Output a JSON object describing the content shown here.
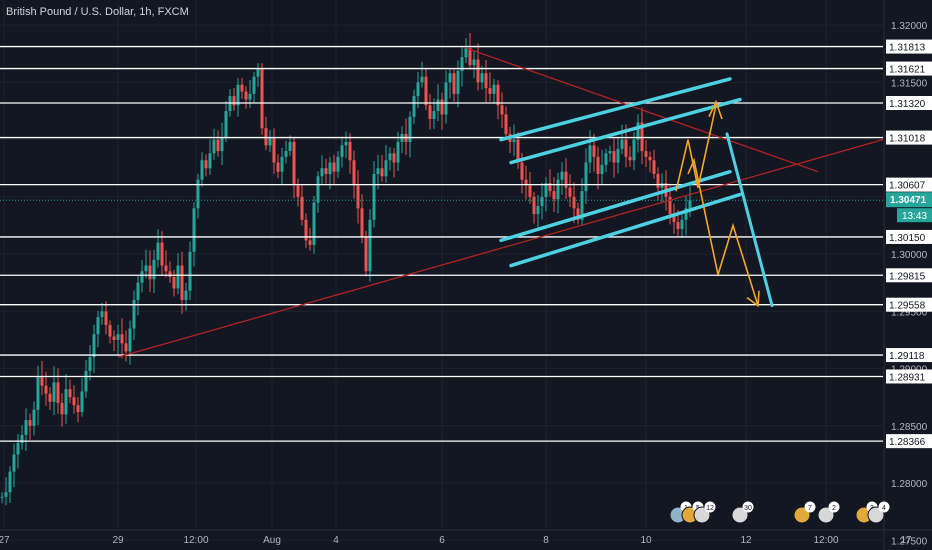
{
  "header": {
    "title": "British Pound / U.S. Dollar, 1h, FXCM"
  },
  "colors": {
    "background": "#131722",
    "up_candle": "#26a69a",
    "down_candle": "#ef5350",
    "grid_line": "#1e222d",
    "level_line": "#ffffff",
    "trend_line": "#b22222",
    "channel_line": "#4dd0e1",
    "projection": "#f5a623",
    "current_price_bg": "#26a69a"
  },
  "chart_data": {
    "type": "candlestick",
    "title": "British Pound / U.S. Dollar, 1h, FXCM",
    "x_tick_labels": [
      "27",
      "29",
      "12:00",
      "Aug",
      "4",
      "6",
      "8",
      "10",
      "12",
      "12:00",
      "17"
    ],
    "y_tick_labels": [
      "1.32000",
      "1.31500",
      "1.31000",
      "1.30500",
      "1.30000",
      "1.29500",
      "1.29000",
      "1.28500",
      "1.28000",
      "1.27500"
    ],
    "ylim": [
      1.2745,
      1.3215
    ],
    "price_levels": [
      1.31813,
      1.31621,
      1.3132,
      1.31018,
      1.30607,
      1.3015,
      1.29815,
      1.29558,
      1.29118,
      1.28931,
      1.28366
    ],
    "current_price": {
      "value": "1.30471",
      "countdown": "13:43"
    },
    "event_badges": [
      {
        "label": "1"
      },
      {
        "label": "5"
      },
      {
        "label": "12"
      },
      {
        "label": "30"
      },
      {
        "label": "7"
      },
      {
        "label": "2"
      },
      {
        "label": "3"
      },
      {
        "label": "4"
      }
    ],
    "candles_close_path": [
      [
        0,
        1.2788
      ],
      [
        4,
        1.2792
      ],
      [
        8,
        1.281
      ],
      [
        12,
        1.2825
      ],
      [
        16,
        1.2835
      ],
      [
        20,
        1.2842
      ],
      [
        24,
        1.2855
      ],
      [
        28,
        1.285
      ],
      [
        32,
        1.2864
      ],
      [
        36,
        1.2893
      ],
      [
        40,
        1.2885
      ],
      [
        44,
        1.2878
      ],
      [
        48,
        1.2871
      ],
      [
        52,
        1.2888
      ],
      [
        56,
        1.287
      ],
      [
        60,
        1.286
      ],
      [
        64,
        1.2882
      ],
      [
        68,
        1.2875
      ],
      [
        72,
        1.2868
      ],
      [
        76,
        1.2862
      ],
      [
        80,
        1.288
      ],
      [
        84,
        1.2898
      ],
      [
        88,
        1.291
      ],
      [
        92,
        1.293
      ],
      [
        96,
        1.2945
      ],
      [
        100,
        1.295
      ],
      [
        104,
        1.2938
      ],
      [
        108,
        1.2928
      ],
      [
        112,
        1.2925
      ],
      [
        116,
        1.293
      ],
      [
        120,
        1.2922
      ],
      [
        124,
        1.2915
      ],
      [
        128,
        1.2935
      ],
      [
        132,
        1.296
      ],
      [
        136,
        1.2975
      ],
      [
        140,
        1.2985
      ],
      [
        144,
        1.299
      ],
      [
        148,
        1.2978
      ],
      [
        152,
        1.2995
      ],
      [
        156,
        1.301
      ],
      [
        160,
        1.299
      ],
      [
        164,
        1.2985
      ],
      [
        168,
        1.298
      ],
      [
        172,
        1.297
      ],
      [
        176,
        1.299
      ],
      [
        180,
        1.296
      ],
      [
        184,
        1.2968
      ],
      [
        188,
        1.3002
      ],
      [
        192,
        1.304
      ],
      [
        196,
        1.3065
      ],
      [
        200,
        1.3082
      ],
      [
        204,
        1.3075
      ],
      [
        208,
        1.3088
      ],
      [
        212,
        1.31
      ],
      [
        216,
        1.309
      ],
      [
        220,
        1.3102
      ],
      [
        224,
        1.3125
      ],
      [
        228,
        1.3138
      ],
      [
        232,
        1.313
      ],
      [
        236,
        1.3148
      ],
      [
        240,
        1.3142
      ],
      [
        244,
        1.3135
      ],
      [
        248,
        1.314
      ],
      [
        252,
        1.3155
      ],
      [
        256,
        1.3162
      ],
      [
        260,
        1.311
      ],
      [
        264,
        1.3095
      ],
      [
        268,
        1.3102
      ],
      [
        272,
        1.308
      ],
      [
        276,
        1.3072
      ],
      [
        280,
        1.3085
      ],
      [
        284,
        1.309
      ],
      [
        288,
        1.3098
      ],
      [
        292,
        1.306
      ],
      [
        296,
        1.305
      ],
      [
        300,
        1.303
      ],
      [
        304,
        1.3012
      ],
      [
        308,
        1.3008
      ],
      [
        312,
        1.3045
      ],
      [
        316,
        1.3068
      ],
      [
        320,
        1.3075
      ],
      [
        324,
        1.307
      ],
      [
        328,
        1.308
      ],
      [
        332,
        1.3072
      ],
      [
        336,
        1.3085
      ],
      [
        340,
        1.3095
      ],
      [
        344,
        1.3098
      ],
      [
        348,
        1.3082
      ],
      [
        352,
        1.306
      ],
      [
        356,
        1.304
      ],
      [
        360,
        1.3015
      ],
      [
        364,
        1.2985
      ],
      [
        368,
        1.303
      ],
      [
        372,
        1.307
      ],
      [
        376,
        1.3075
      ],
      [
        380,
        1.3068
      ],
      [
        384,
        1.3082
      ],
      [
        388,
        1.3088
      ],
      [
        392,
        1.308
      ],
      [
        396,
        1.3098
      ],
      [
        400,
        1.3105
      ],
      [
        404,
        1.3098
      ],
      [
        408,
        1.312
      ],
      [
        412,
        1.3138
      ],
      [
        416,
        1.315
      ],
      [
        420,
        1.3155
      ],
      [
        424,
        1.313
      ],
      [
        428,
        1.3118
      ],
      [
        432,
        1.3125
      ],
      [
        436,
        1.3135
      ],
      [
        440,
        1.3122
      ],
      [
        444,
        1.315
      ],
      [
        448,
        1.3158
      ],
      [
        452,
        1.314
      ],
      [
        456,
        1.316
      ],
      [
        460,
        1.3172
      ],
      [
        464,
        1.318
      ],
      [
        468,
        1.3165
      ],
      [
        472,
        1.317
      ],
      [
        476,
        1.315
      ],
      [
        480,
        1.3158
      ],
      [
        484,
        1.3145
      ],
      [
        488,
        1.314
      ],
      [
        492,
        1.3148
      ],
      [
        496,
        1.313
      ],
      [
        500,
        1.3122
      ],
      [
        504,
        1.3105
      ],
      [
        508,
        1.3098
      ],
      [
        512,
        1.31
      ],
      [
        516,
        1.308
      ],
      [
        520,
        1.3065
      ],
      [
        524,
        1.306
      ],
      [
        528,
        1.305
      ],
      [
        532,
        1.3035
      ],
      [
        536,
        1.3042
      ],
      [
        540,
        1.305
      ],
      [
        544,
        1.3062
      ],
      [
        548,
        1.3055
      ],
      [
        552,
        1.3048
      ],
      [
        556,
        1.3065
      ],
      [
        560,
        1.3072
      ],
      [
        564,
        1.3058
      ],
      [
        568,
        1.305
      ],
      [
        572,
        1.304
      ],
      [
        576,
        1.303
      ],
      [
        580,
        1.3055
      ],
      [
        584,
        1.308
      ],
      [
        588,
        1.3095
      ],
      [
        592,
        1.3085
      ],
      [
        596,
        1.307
      ],
      [
        600,
        1.3078
      ],
      [
        604,
        1.3088
      ],
      [
        608,
        1.309
      ],
      [
        612,
        1.308
      ],
      [
        616,
        1.3092
      ],
      [
        620,
        1.31
      ],
      [
        624,
        1.3085
      ],
      [
        628,
        1.3082
      ],
      [
        632,
        1.31
      ],
      [
        636,
        1.3115
      ],
      [
        640,
        1.309
      ],
      [
        644,
        1.3085
      ],
      [
        648,
        1.3082
      ],
      [
        652,
        1.307
      ],
      [
        656,
        1.3058
      ],
      [
        660,
        1.3062
      ],
      [
        664,
        1.305
      ],
      [
        668,
        1.3035
      ],
      [
        672,
        1.3028
      ],
      [
        676,
        1.3022
      ],
      [
        680,
        1.303
      ],
      [
        684,
        1.304
      ],
      [
        688,
        1.3047
      ]
    ]
  }
}
